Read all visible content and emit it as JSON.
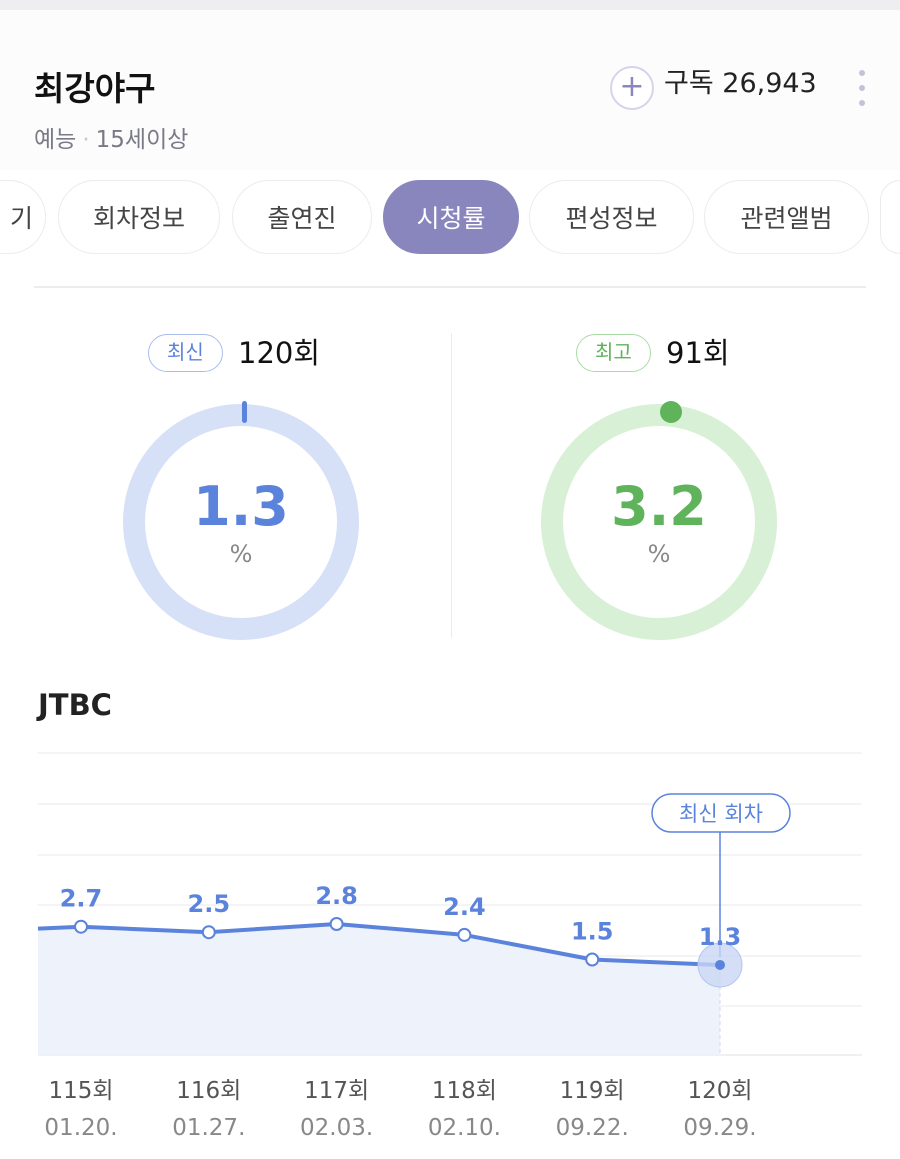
{
  "header": {
    "title": "최강야구",
    "genre": "예능",
    "age": "15세이상",
    "subscribe_icon": "plus-icon",
    "subscribe_label": "구독 26,943",
    "more_icon": "more-vertical-icon"
  },
  "tabs": [
    {
      "label": "기"
    },
    {
      "label": "회차정보"
    },
    {
      "label": "출연진"
    },
    {
      "label": "시청률",
      "active": true
    },
    {
      "label": "편성정보"
    },
    {
      "label": "관련앨범"
    }
  ],
  "latest": {
    "badge": "최신",
    "episode": "120회",
    "value": "1.3",
    "unit": "%",
    "color": "#5b83dc",
    "ring": "#d6e0f7"
  },
  "best": {
    "badge": "최고",
    "episode": "91회",
    "value": "3.2",
    "unit": "%",
    "color": "#5fb35a",
    "ring": "#d8f0d5"
  },
  "channel": "JTBC",
  "chart_data": {
    "type": "area",
    "categories": [
      "115회",
      "116회",
      "117회",
      "118회",
      "119회",
      "120회"
    ],
    "dates": [
      "01.20.",
      "01.27.",
      "02.03.",
      "02.10.",
      "09.22.",
      "09.29."
    ],
    "values": [
      2.7,
      2.5,
      2.8,
      2.4,
      1.5,
      1.3
    ],
    "labels": [
      "2.7",
      "2.5",
      "2.8",
      "2.4",
      "1.5",
      "1.3"
    ],
    "annotation": "최신 회차",
    "grid": true,
    "color": "#5b83dc"
  }
}
